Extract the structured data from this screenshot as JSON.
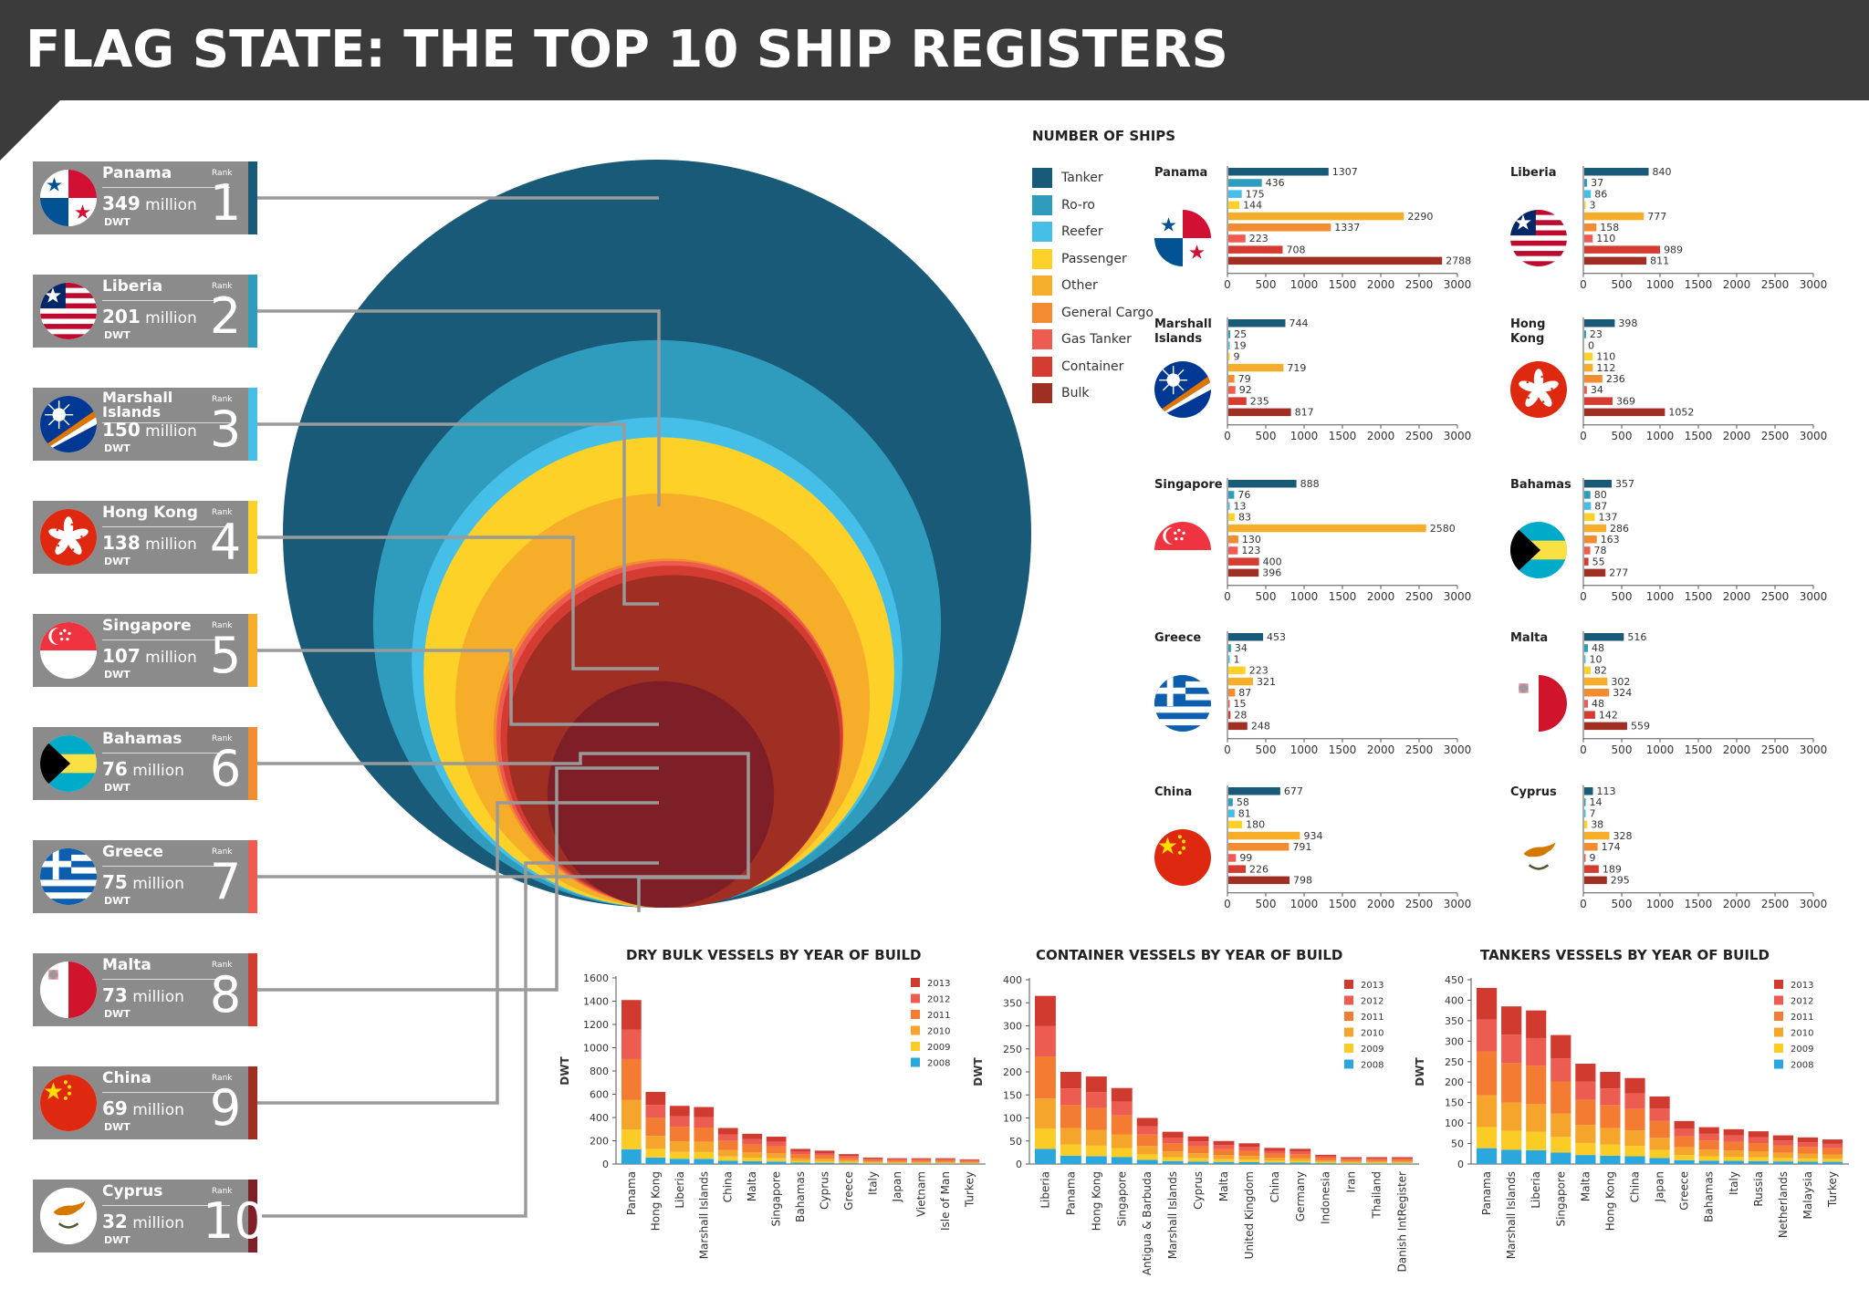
{
  "title": "FLAG STATE: THE TOP 10 SHIP REGISTERS",
  "colors": {
    "Tanker": "#1a5a79",
    "Ro-ro": "#2f9bbd",
    "Reefer": "#45bfe8",
    "Passenger": "#fdd127",
    "Other": "#f6ad2a",
    "General Cargo": "#f38b30",
    "Gas Tanker": "#ee5b51",
    "Container": "#d43c31",
    "Bulk": "#9e2f22",
    "y2013": "#d03a2f",
    "y2012": "#ed5c50",
    "y2011": "#f47c32",
    "y2010": "#f5a52c",
    "y2009": "#fccc26",
    "y2008": "#2aa7dc"
  },
  "rank_labels": {
    "rank": "Rank",
    "dwt": "DWT",
    "million": "million"
  },
  "rankings": [
    {
      "country": "Panama",
      "dwt": "349",
      "rank": "1",
      "flag": "panama-flag",
      "stripe": "#2b8ab0"
    },
    {
      "country": "Liberia",
      "dwt": "201",
      "rank": "2",
      "flag": "liberia-flag",
      "stripe": "#2b9bbd"
    },
    {
      "country": "Marshall Islands",
      "dwt": "150",
      "rank": "3",
      "flag": "marshall-islands-flag",
      "stripe": "#45bfe8"
    },
    {
      "country": "Hong Kong",
      "dwt": "138",
      "rank": "4",
      "flag": "hong-kong-flag",
      "stripe": "#fdd127"
    },
    {
      "country": "Singapore",
      "dwt": "107",
      "rank": "5",
      "flag": "singapore-flag",
      "stripe": "#f6ad2a"
    },
    {
      "country": "Bahamas",
      "dwt": "76",
      "rank": "6",
      "flag": "bahamas-flag",
      "stripe": "#f38b30"
    },
    {
      "country": "Greece",
      "dwt": "75",
      "rank": "7",
      "flag": "greece-flag",
      "stripe": "#ee5b51"
    },
    {
      "country": "Malta",
      "dwt": "73",
      "rank": "8",
      "flag": "malta-flag",
      "stripe": "#d43c31"
    },
    {
      "country": "China",
      "dwt": "69",
      "rank": "9",
      "flag": "china-flag",
      "stripe": "#c0352b"
    },
    {
      "country": "Cyprus",
      "dwt": "32",
      "rank": "10",
      "flag": "cyprus-flag",
      "stripe": "#7e2222"
    }
  ],
  "ships_legend": {
    "title": "NUMBER OF SHIPS",
    "items": [
      "Tanker",
      "Ro-ro",
      "Reefer",
      "Passenger",
      "Other",
      "General Cargo",
      "Gas Tanker",
      "Container",
      "Bulk"
    ]
  },
  "chart_data": [
    {
      "type": "bubble",
      "description_key": "nested circles sized by DWT",
      "categories": [
        "Panama",
        "Liberia",
        "Marshall Islands",
        "Hong Kong",
        "Singapore",
        "Bahamas",
        "Greece",
        "Malta",
        "China",
        "Cyprus"
      ],
      "values": [
        349,
        201,
        150,
        138,
        107,
        76,
        75,
        73,
        69,
        32
      ],
      "unit": "million DWT"
    },
    {
      "type": "bar",
      "title": "NUMBER OF SHIPS",
      "categories": [
        "Tanker",
        "Ro-ro",
        "Reefer",
        "Passenger",
        "Other",
        "General Cargo",
        "Gas Tanker",
        "Container",
        "Bulk"
      ],
      "xlim": [
        0,
        3000
      ],
      "ticks": [
        0,
        500,
        1000,
        1500,
        2000,
        2500,
        3000
      ],
      "panels": [
        {
          "name": "Panama",
          "flag": "panama-flag",
          "values": [
            1307,
            436,
            175,
            144,
            2290,
            1337,
            223,
            708,
            2788
          ]
        },
        {
          "name": "Liberia",
          "flag": "liberia-flag",
          "values": [
            840,
            37,
            86,
            3,
            777,
            158,
            110,
            989,
            811
          ]
        },
        {
          "name": "Marshall Islands",
          "flag": "marshall-islands-flag",
          "values": [
            744,
            25,
            19,
            9,
            719,
            79,
            92,
            235,
            817
          ]
        },
        {
          "name": "Hong Kong",
          "flag": "hong-kong-flag",
          "values": [
            398,
            23,
            0,
            110,
            112,
            236,
            34,
            369,
            1052
          ]
        },
        {
          "name": "Singapore",
          "flag": "singapore-flag",
          "values": [
            888,
            76,
            13,
            83,
            2580,
            130,
            123,
            400,
            396
          ]
        },
        {
          "name": "Bahamas",
          "flag": "bahamas-flag",
          "values": [
            357,
            80,
            87,
            137,
            286,
            163,
            78,
            55,
            277
          ]
        },
        {
          "name": "Greece",
          "flag": "greece-flag",
          "values": [
            453,
            34,
            1,
            223,
            321,
            87,
            15,
            28,
            248
          ]
        },
        {
          "name": "Malta",
          "flag": "malta-flag",
          "values": [
            516,
            48,
            10,
            82,
            302,
            324,
            48,
            142,
            559
          ]
        },
        {
          "name": "China",
          "flag": "china-flag",
          "values": [
            677,
            58,
            81,
            180,
            934,
            791,
            99,
            226,
            798
          ]
        },
        {
          "name": "Cyprus",
          "flag": "cyprus-flag",
          "values": [
            113,
            14,
            7,
            38,
            328,
            174,
            9,
            189,
            295
          ]
        }
      ]
    },
    {
      "type": "bar",
      "stacked": true,
      "title": "DRY BULK VESSELS BY YEAR OF BUILD",
      "ylabel": "DWT",
      "ylim": [
        0,
        1600
      ],
      "yticks": [
        0,
        200,
        400,
        600,
        800,
        1000,
        1200,
        1400,
        1600
      ],
      "series_order": [
        "2008",
        "2009",
        "2010",
        "2011",
        "2012",
        "2013"
      ],
      "legend": [
        "2013",
        "2012",
        "2011",
        "2010",
        "2009",
        "2008"
      ],
      "categories": [
        "Panama",
        "Hong Kong",
        "Liberia",
        "Marshall Islands",
        "China",
        "Malta",
        "Singapore",
        "Bahamas",
        "Cyprus",
        "Greece",
        "Italy",
        "Japan",
        "Vietnam",
        "Isle of Man",
        "Turkey"
      ],
      "totals": [
        1410,
        620,
        500,
        490,
        310,
        260,
        235,
        130,
        115,
        85,
        55,
        50,
        50,
        50,
        40
      ]
    },
    {
      "type": "bar",
      "stacked": true,
      "title": "CONTAINER VESSELS BY YEAR OF BUILD",
      "ylabel": "DWT",
      "ylim": [
        0,
        400
      ],
      "yticks": [
        0,
        50,
        100,
        150,
        200,
        250,
        300,
        350,
        400
      ],
      "series_order": [
        "2008",
        "2009",
        "2010",
        "2011",
        "2012",
        "2013"
      ],
      "legend": [
        "2013",
        "2012",
        "2011",
        "2010",
        "2009",
        "2008"
      ],
      "categories": [
        "Liberia",
        "Panama",
        "Hong Kong",
        "Singapore",
        "Antigua & Barbuda",
        "Marshall Islands",
        "Cyprus",
        "Malta",
        "United Kingdom",
        "China",
        "Germany",
        "Indonesia",
        "Iran",
        "Thailand",
        "Danish IntRegister"
      ],
      "totals": [
        365,
        200,
        190,
        165,
        100,
        70,
        60,
        50,
        45,
        35,
        33,
        20,
        15,
        15,
        15
      ]
    },
    {
      "type": "bar",
      "stacked": true,
      "title": "TANKERS VESSELS BY YEAR OF BUILD",
      "ylabel": "DWT",
      "ylim": [
        0,
        450
      ],
      "yticks": [
        0,
        50,
        100,
        150,
        200,
        250,
        300,
        350,
        400,
        450
      ],
      "series_order": [
        "2008",
        "2009",
        "2010",
        "2011",
        "2012",
        "2013"
      ],
      "legend": [
        "2013",
        "2012",
        "2011",
        "2010",
        "2009",
        "2008"
      ],
      "categories": [
        "Panama",
        "Marshall Islands",
        "Liberia",
        "Singapore",
        "Malta",
        "Hong Kong",
        "China",
        "Japan",
        "Greece",
        "Bahamas",
        "Italy",
        "Russia",
        "Netherlands",
        "Malaysia",
        "Turkey"
      ],
      "totals": [
        430,
        385,
        375,
        315,
        245,
        225,
        210,
        165,
        105,
        90,
        85,
        80,
        70,
        65,
        60
      ]
    }
  ]
}
